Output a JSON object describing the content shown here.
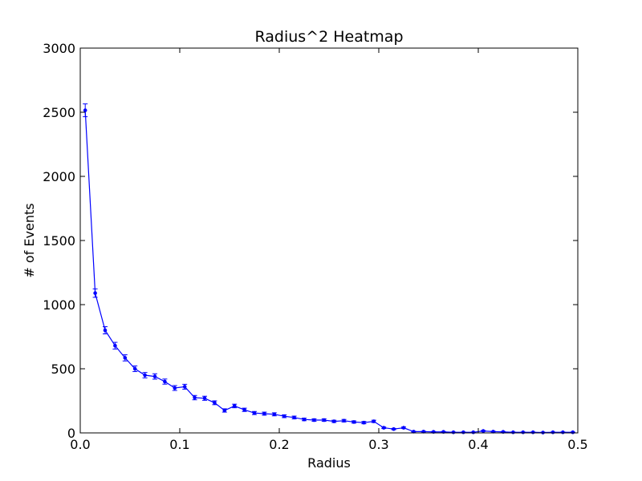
{
  "chart_data": {
    "type": "line",
    "title": "Radius^2 Heatmap",
    "xlabel": "Radius",
    "ylabel": "# of Events",
    "xlim": [
      0.0,
      0.5
    ],
    "ylim": [
      0,
      3000
    ],
    "xticks": [
      0.0,
      0.1,
      0.2,
      0.3,
      0.4,
      0.5
    ],
    "xtick_labels": [
      "0.0",
      "0.1",
      "0.2",
      "0.3",
      "0.4",
      "0.5"
    ],
    "yticks": [
      0,
      500,
      1000,
      1500,
      2000,
      2500,
      3000
    ],
    "ytick_labels": [
      "0",
      "500",
      "1000",
      "1500",
      "2000",
      "2500",
      "3000"
    ],
    "grid": false,
    "legend": "none",
    "series": [
      {
        "color": "#0000ff",
        "marker": "dot",
        "error_bars": true,
        "x": [
          0.005,
          0.015,
          0.025,
          0.035,
          0.045,
          0.055,
          0.065,
          0.075,
          0.085,
          0.095,
          0.105,
          0.115,
          0.125,
          0.135,
          0.145,
          0.155,
          0.165,
          0.175,
          0.185,
          0.195,
          0.205,
          0.215,
          0.225,
          0.235,
          0.245,
          0.255,
          0.265,
          0.275,
          0.285,
          0.295,
          0.305,
          0.315,
          0.325,
          0.335,
          0.345,
          0.355,
          0.365,
          0.375,
          0.385,
          0.395,
          0.405,
          0.415,
          0.425,
          0.435,
          0.445,
          0.455,
          0.465,
          0.475,
          0.485,
          0.495
        ],
        "y": [
          2515,
          1090,
          800,
          680,
          585,
          500,
          450,
          440,
          400,
          350,
          360,
          275,
          270,
          235,
          175,
          210,
          180,
          155,
          150,
          145,
          130,
          120,
          105,
          100,
          100,
          90,
          95,
          85,
          80,
          90,
          40,
          30,
          40,
          10,
          10,
          8,
          8,
          5,
          5,
          5,
          15,
          10,
          8,
          5,
          5,
          5,
          3,
          5,
          5,
          5
        ],
        "err": [
          50,
          33,
          28,
          26,
          24,
          22,
          21,
          21,
          20,
          19,
          19,
          17,
          16,
          15,
          13,
          14,
          13,
          12,
          12,
          12,
          11,
          11,
          10,
          10,
          10,
          9,
          10,
          9,
          9,
          9,
          6,
          5,
          6,
          3,
          3,
          3,
          3,
          2,
          2,
          2,
          4,
          3,
          3,
          2,
          2,
          2,
          2,
          2,
          2,
          2
        ]
      }
    ]
  }
}
